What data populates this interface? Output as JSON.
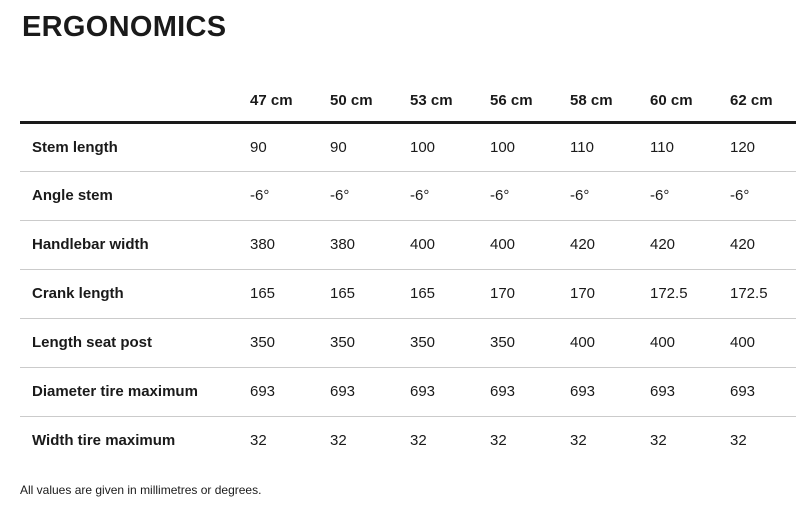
{
  "page": {
    "title": "ERGONOMICS",
    "footnote": "All values are given in millimetres or degrees."
  },
  "table": {
    "columns": [
      "47 cm",
      "50 cm",
      "53 cm",
      "56 cm",
      "58 cm",
      "60 cm",
      "62 cm"
    ],
    "rows": [
      {
        "label": "Stem length",
        "values": [
          "90",
          "90",
          "100",
          "100",
          "110",
          "110",
          "120"
        ]
      },
      {
        "label": "Angle stem",
        "values": [
          "-6°",
          "-6°",
          "-6°",
          "-6°",
          "-6°",
          "-6°",
          "-6°"
        ]
      },
      {
        "label": "Handlebar width",
        "values": [
          "380",
          "380",
          "400",
          "400",
          "420",
          "420",
          "420"
        ]
      },
      {
        "label": "Crank length",
        "values": [
          "165",
          "165",
          "165",
          "170",
          "170",
          "172.5",
          "172.5"
        ]
      },
      {
        "label": "Length seat post",
        "values": [
          "350",
          "350",
          "350",
          "350",
          "400",
          "400",
          "400"
        ]
      },
      {
        "label": "Diameter tire maximum",
        "values": [
          "693",
          "693",
          "693",
          "693",
          "693",
          "693",
          "693"
        ]
      },
      {
        "label": "Width tire maximum",
        "values": [
          "32",
          "32",
          "32",
          "32",
          "32",
          "32",
          "32"
        ]
      }
    ]
  },
  "colors": {
    "text": "#1a1a1a",
    "header_rule": "#1a1a1a",
    "row_separator": "#cbcbcb",
    "background": "#ffffff"
  }
}
